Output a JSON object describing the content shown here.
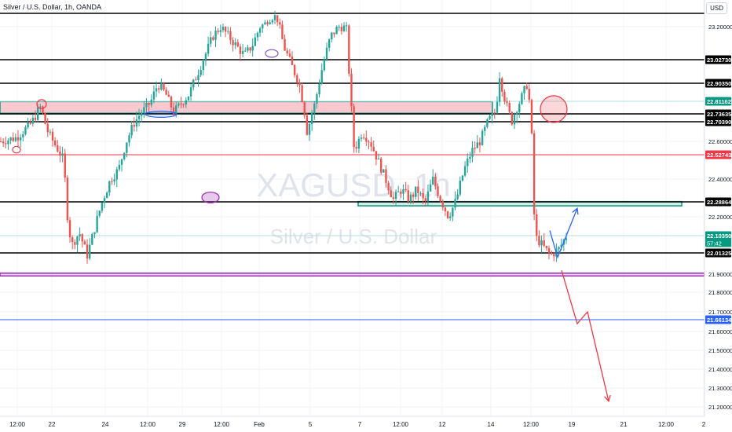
{
  "header": {
    "symbol_title": "Silver / U.S. Dollar, 1h, OANDA",
    "currency": "USD"
  },
  "watermark": {
    "symbol": "XAGUSD, 1h",
    "description": "Silver / U.S. Dollar"
  },
  "colors": {
    "up": "#26a69a",
    "down": "#ef5350",
    "level_black": "#000000",
    "level_red": "#f23645",
    "level_blue": "#2962ff",
    "zone_pink_fill": "#f9c9cf",
    "zone_green_fill": "#d3ede6",
    "zone_purple_fill": "#e3dcf5",
    "arrow_up": "#2962ff",
    "arrow_down": "#f23645"
  },
  "chart_data": {
    "type": "candlestick",
    "x_tick_labels": [
      "12:00",
      "22",
      "24",
      "12:00",
      "29",
      "12:00",
      "Feb",
      "5",
      "7",
      "12:00",
      "12",
      "14",
      "12:00",
      "19",
      "21",
      "12:00",
      "2"
    ],
    "y_tick_labels": [
      "23.20000",
      "22.60000",
      "22.40000",
      "22.20000",
      "21.90000",
      "21.80000",
      "21.70000",
      "21.60000",
      "21.50000",
      "21.40000",
      "21.30000",
      "21.20000"
    ],
    "y_ticks": [
      23.2,
      22.6,
      22.4,
      22.2,
      21.9,
      21.8,
      21.7,
      21.6,
      21.5,
      21.4,
      21.3,
      21.2
    ],
    "ylim": [
      21.15,
      23.35
    ],
    "grid": true,
    "horizontal_levels": [
      {
        "label": "23.02730",
        "value": 23.0273,
        "color": "black"
      },
      {
        "label": "22.90350",
        "value": 22.9035,
        "color": "black"
      },
      {
        "label": "22.81162",
        "value": 22.81162,
        "color": "green"
      },
      {
        "label": "22.73635",
        "value": 22.73635,
        "color": "black"
      },
      {
        "label": "22.70390",
        "value": 22.7039,
        "color": "black"
      },
      {
        "label": "22.52743",
        "value": 22.52743,
        "color": "red"
      },
      {
        "label": "22.28864",
        "value": 22.28864,
        "color": "black"
      },
      {
        "label": "22.10350",
        "value": 22.1035,
        "color": "green",
        "sub": "57:42"
      },
      {
        "label": "22.01325",
        "value": 22.01325,
        "color": "black"
      },
      {
        "label": "21.66134",
        "value": 21.66134,
        "color": "blue"
      }
    ],
    "top_line": 23.32,
    "zones": [
      {
        "name": "resistance-zone",
        "from": 22.74,
        "to": 22.81,
        "color": "pink"
      },
      {
        "name": "support-zone",
        "from": 22.265,
        "to": 22.29,
        "color": "green"
      },
      {
        "name": "bottom-zone",
        "from": 21.89,
        "to": 21.905,
        "color": "purple"
      }
    ],
    "price_path": [
      [
        0.0,
        22.6
      ],
      [
        0.02,
        22.62
      ],
      [
        0.04,
        22.7
      ],
      [
        0.05,
        22.78
      ],
      [
        0.06,
        22.65
      ],
      [
        0.08,
        22.5
      ],
      [
        0.085,
        22.2
      ],
      [
        0.09,
        22.05
      ],
      [
        0.1,
        22.12
      ],
      [
        0.11,
        22.0
      ],
      [
        0.12,
        22.15
      ],
      [
        0.13,
        22.3
      ],
      [
        0.14,
        22.4
      ],
      [
        0.15,
        22.45
      ],
      [
        0.16,
        22.6
      ],
      [
        0.17,
        22.7
      ],
      [
        0.18,
        22.75
      ],
      [
        0.19,
        22.8
      ],
      [
        0.2,
        22.9
      ],
      [
        0.21,
        22.85
      ],
      [
        0.22,
        22.75
      ],
      [
        0.23,
        22.8
      ],
      [
        0.24,
        22.85
      ],
      [
        0.25,
        22.95
      ],
      [
        0.26,
        23.05
      ],
      [
        0.27,
        23.15
      ],
      [
        0.28,
        23.2
      ],
      [
        0.29,
        23.15
      ],
      [
        0.3,
        23.1
      ],
      [
        0.31,
        23.05
      ],
      [
        0.32,
        23.1
      ],
      [
        0.33,
        23.2
      ],
      [
        0.34,
        23.25
      ],
      [
        0.35,
        23.3
      ],
      [
        0.355,
        23.2
      ],
      [
        0.36,
        23.1
      ],
      [
        0.37,
        23.0
      ],
      [
        0.38,
        22.9
      ],
      [
        0.385,
        22.8
      ],
      [
        0.39,
        22.65
      ],
      [
        0.4,
        22.8
      ],
      [
        0.41,
        23.0
      ],
      [
        0.42,
        23.15
      ],
      [
        0.43,
        23.2
      ],
      [
        0.44,
        23.2
      ],
      [
        0.445,
        22.85
      ],
      [
        0.45,
        22.55
      ],
      [
        0.46,
        22.65
      ],
      [
        0.47,
        22.6
      ],
      [
        0.48,
        22.5
      ],
      [
        0.49,
        22.4
      ],
      [
        0.5,
        22.3
      ],
      [
        0.51,
        22.35
      ],
      [
        0.52,
        22.3
      ],
      [
        0.53,
        22.35
      ],
      [
        0.54,
        22.28
      ],
      [
        0.55,
        22.4
      ],
      [
        0.56,
        22.3
      ],
      [
        0.57,
        22.2
      ],
      [
        0.58,
        22.3
      ],
      [
        0.59,
        22.45
      ],
      [
        0.6,
        22.55
      ],
      [
        0.61,
        22.6
      ],
      [
        0.62,
        22.7
      ],
      [
        0.63,
        22.75
      ],
      [
        0.635,
        22.95
      ],
      [
        0.64,
        22.85
      ],
      [
        0.65,
        22.7
      ],
      [
        0.66,
        22.8
      ],
      [
        0.67,
        22.9
      ],
      [
        0.675,
        22.75
      ],
      [
        0.68,
        22.1
      ],
      [
        0.69,
        22.05
      ],
      [
        0.7,
        22.0
      ],
      [
        0.71,
        22.03
      ],
      [
        0.72,
        22.1
      ]
    ],
    "projection": {
      "blue_path": [
        [
          0.7,
          22.13
        ],
        [
          0.71,
          21.99
        ],
        [
          0.735,
          22.25
        ]
      ],
      "red_path": [
        [
          0.715,
          21.92
        ],
        [
          0.735,
          21.64
        ],
        [
          0.748,
          21.7
        ],
        [
          0.775,
          21.23
        ]
      ]
    },
    "annotations": [
      {
        "kind": "ellipse",
        "cx": 0.053,
        "cy": 22.795,
        "rx": 0.006,
        "ry": 0.025,
        "color": "red"
      },
      {
        "kind": "ellipse",
        "cx": 0.021,
        "cy": 22.555,
        "rx": 0.005,
        "ry": 0.018,
        "color": "red"
      },
      {
        "kind": "ellipse",
        "cx": 0.205,
        "cy": 22.735,
        "rx": 0.02,
        "ry": 0.018,
        "color": "blue"
      },
      {
        "kind": "ellipse",
        "cx": 0.346,
        "cy": 23.06,
        "rx": 0.008,
        "ry": 0.02,
        "color": "purple"
      },
      {
        "kind": "ellipse",
        "cx": 0.268,
        "cy": 22.31,
        "rx": 0.011,
        "ry": 0.026,
        "color": "purple-fill"
      },
      {
        "kind": "ellipse",
        "cx": 0.705,
        "cy": 22.765,
        "rx": 0.017,
        "ry": 0.075,
        "color": "red-fill"
      }
    ]
  }
}
